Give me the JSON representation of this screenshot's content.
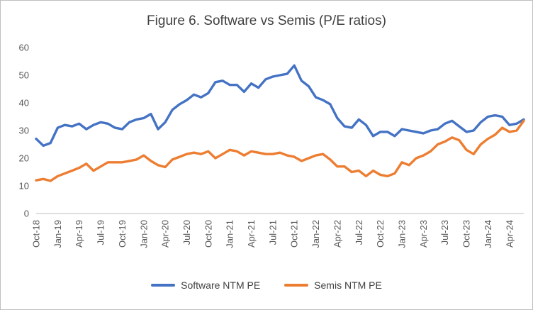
{
  "title": "Figure 6. Software vs Semis (P/E ratios)",
  "colors": {
    "software": "#4472C4",
    "semis": "#ED7D31",
    "axis": "#BFBFBF",
    "tick_text": "#595959",
    "title_text": "#404040"
  },
  "legend": [
    {
      "label": "Software NTM PE",
      "color": "#4472C4"
    },
    {
      "label": "Semis NTM PE",
      "color": "#ED7D31"
    }
  ],
  "chart_data": {
    "type": "line",
    "title": "Figure 6. Software vs Semis (P/E ratios)",
    "xlabel": "",
    "ylabel": "",
    "ylim": [
      0,
      60
    ],
    "yticks": [
      0,
      10,
      20,
      30,
      40,
      50,
      60
    ],
    "grid": false,
    "legend_position": "bottom",
    "x_tick_every": 3,
    "x_tick_labels": [
      "Oct-18",
      "Jan-19",
      "Apr-19",
      "Jul-19",
      "Oct-19",
      "Jan-20",
      "Apr-20",
      "Jul-20",
      "Oct-20",
      "Jan-21",
      "Apr-21",
      "Jul-21",
      "Oct-21",
      "Jan-22",
      "Apr-22",
      "Jul-22",
      "Oct-22",
      "Jan-23",
      "Apr-23",
      "Jul-23",
      "Oct-23",
      "Jan-24",
      "Apr-24"
    ],
    "series": [
      {
        "name": "Software NTM PE",
        "color": "#4472C4",
        "values": [
          27,
          24.5,
          25.5,
          31,
          32,
          31.5,
          32.5,
          30.5,
          32,
          33,
          32.5,
          31,
          30.5,
          33,
          34,
          34.5,
          36,
          30.5,
          33,
          37.5,
          39.5,
          41,
          43,
          42,
          43.5,
          47.5,
          48,
          46.5,
          46.5,
          44,
          47,
          45.5,
          48.5,
          49.5,
          50,
          50.5,
          53.5,
          48,
          46,
          42,
          41,
          39.5,
          34.5,
          31.5,
          31,
          34,
          32,
          28,
          29.5,
          29.5,
          28,
          30.5,
          30,
          29.5,
          29,
          30,
          30.5,
          32.5,
          33.5,
          31.5,
          29.5,
          30,
          33,
          35,
          35.5,
          35,
          32,
          32.5,
          34
        ]
      },
      {
        "name": "Semis NTM PE",
        "color": "#ED7D31",
        "values": [
          12,
          12.5,
          11.8,
          13.5,
          14.5,
          15.5,
          16.5,
          18,
          15.5,
          17,
          18.5,
          18.5,
          18.5,
          19,
          19.5,
          21,
          19,
          17.5,
          16.8,
          19.5,
          20.5,
          21.5,
          22,
          21.5,
          22.5,
          20,
          21.5,
          23,
          22.5,
          21,
          22.5,
          22,
          21.5,
          21.5,
          22,
          21,
          20.5,
          19,
          20,
          21,
          21.5,
          19.5,
          17,
          17,
          15,
          15.5,
          13.5,
          15.5,
          14,
          13.5,
          14.5,
          18.5,
          17.5,
          20,
          21,
          22.5,
          25,
          26,
          27.5,
          26.5,
          23,
          21.5,
          25,
          27,
          28.5,
          31,
          29.5,
          30,
          33.5
        ]
      }
    ]
  }
}
